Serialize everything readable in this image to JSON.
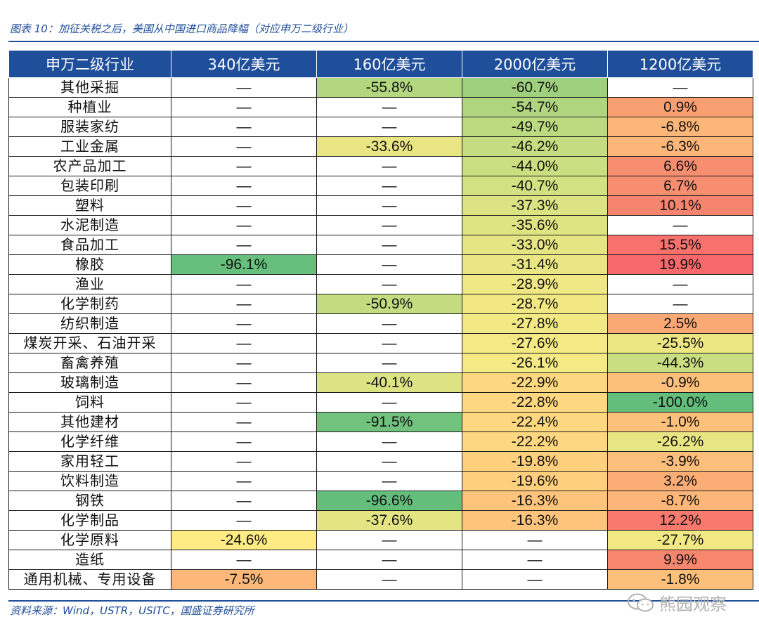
{
  "header": {
    "title": "图表 10：加征关税之后，美国从中国进口商品降幅（对应申万二级行业）"
  },
  "colors": {
    "header_bg": "#1f4e9a",
    "scale_neg_full": "#63be7b",
    "scale_mid": "#ffeb84",
    "scale_pos_full": "#f8696b"
  },
  "table": {
    "columns": [
      "申万二级行业",
      "340亿美元",
      "160亿美元",
      "2000亿美元",
      "1200亿美元"
    ],
    "rows": [
      [
        "其他采掘",
        "—",
        "-55.8%",
        "-60.7%",
        "—"
      ],
      [
        "种植业",
        "—",
        "—",
        "-54.7%",
        "0.9%"
      ],
      [
        "服装家纺",
        "—",
        "—",
        "-49.7%",
        "-6.8%"
      ],
      [
        "工业金属",
        "—",
        "-33.6%",
        "-46.2%",
        "-6.3%"
      ],
      [
        "农产品加工",
        "—",
        "—",
        "-44.0%",
        "6.6%"
      ],
      [
        "包装印刷",
        "—",
        "—",
        "-40.7%",
        "6.7%"
      ],
      [
        "塑料",
        "—",
        "—",
        "-37.3%",
        "10.1%"
      ],
      [
        "水泥制造",
        "—",
        "—",
        "-35.6%",
        "—"
      ],
      [
        "食品加工",
        "—",
        "—",
        "-33.0%",
        "15.5%"
      ],
      [
        "橡胶",
        "-96.1%",
        "—",
        "-31.4%",
        "19.9%"
      ],
      [
        "渔业",
        "—",
        "—",
        "-28.9%",
        "—"
      ],
      [
        "化学制药",
        "—",
        "-50.9%",
        "-28.7%",
        "—"
      ],
      [
        "纺织制造",
        "—",
        "—",
        "-27.8%",
        "2.5%"
      ],
      [
        "煤炭开采、石油开采",
        "—",
        "—",
        "-27.6%",
        "-25.5%"
      ],
      [
        "畜禽养殖",
        "—",
        "—",
        "-26.1%",
        "-44.3%"
      ],
      [
        "玻璃制造",
        "—",
        "-40.1%",
        "-22.9%",
        "-0.9%"
      ],
      [
        "饲料",
        "—",
        "—",
        "-22.8%",
        "-100.0%"
      ],
      [
        "其他建材",
        "—",
        "-91.5%",
        "-22.4%",
        "-1.0%"
      ],
      [
        "化学纤维",
        "—",
        "—",
        "-22.2%",
        "-26.2%"
      ],
      [
        "家用轻工",
        "—",
        "—",
        "-19.8%",
        "-3.9%"
      ],
      [
        "饮料制造",
        "—",
        "—",
        "-19.6%",
        "3.2%"
      ],
      [
        "钢铁",
        "—",
        "-96.6%",
        "-16.3%",
        "-8.7%"
      ],
      [
        "化学制品",
        "—",
        "-37.6%",
        "-16.3%",
        "12.2%"
      ],
      [
        "化学原料",
        "-24.6%",
        "—",
        "—",
        "-27.7%"
      ],
      [
        "造纸",
        "—",
        "—",
        "—",
        "9.9%"
      ],
      [
        "通用机械、专用设备",
        "-7.5%",
        "—",
        "—",
        "-1.8%"
      ]
    ],
    "cell_colors": [
      [
        null,
        "#b2d77f",
        "#9fd07d",
        null
      ],
      [
        null,
        null,
        "#afd67f",
        "#f9a073"
      ],
      [
        null,
        null,
        "#bcda80",
        "#fcb679"
      ],
      [
        null,
        "#e9e583",
        "#c5dd80",
        "#fcb679"
      ],
      [
        null,
        null,
        "#cadf81",
        "#f88e70"
      ],
      [
        null,
        null,
        "#d2e181",
        "#f88e70"
      ],
      [
        null,
        null,
        "#dbe382",
        "#f7846f"
      ],
      [
        null,
        null,
        "#dfe482",
        null
      ],
      [
        null,
        null,
        "#e6e583",
        "#f8716d"
      ],
      [
        "#66bf7c",
        null,
        "#eae683",
        "#f8696b"
      ],
      [
        null,
        null,
        "#f0e884",
        null
      ],
      [
        null,
        "#c3dc80",
        "#f1e884",
        null
      ],
      [
        null,
        null,
        "#f3e984",
        "#faa975"
      ],
      [
        null,
        null,
        "#f4e984",
        "#ece683"
      ],
      [
        null,
        null,
        "#f6ea84",
        "#c8de81"
      ],
      [
        null,
        "#dbe382",
        "#fdd880",
        "#fcc07b"
      ],
      [
        null,
        null,
        "#fed880",
        "#63be7b"
      ],
      [
        null,
        "#71c27c",
        "#fed880",
        "#fcc17b"
      ],
      [
        null,
        null,
        "#fed880",
        "#e8e583"
      ],
      [
        null,
        null,
        "#fecf7d",
        "#fcbe7b"
      ],
      [
        null,
        null,
        "#fecf7d",
        "#fbad76"
      ],
      [
        null,
        "#63be7b",
        "#fec47b",
        "#fcb679"
      ],
      [
        null,
        "#e4e582",
        "#fec47b",
        "#f8796d"
      ],
      [
        "#ffeb84",
        null,
        null,
        "#f2e884"
      ],
      [
        null,
        null,
        null,
        "#f7866f"
      ],
      [
        "#fdb879",
        null,
        null,
        "#fcc07b"
      ]
    ]
  },
  "footer": {
    "source": "资料来源：Wind，USTR，USITC，国盛证券研究所",
    "watermark": "熊园观察"
  }
}
